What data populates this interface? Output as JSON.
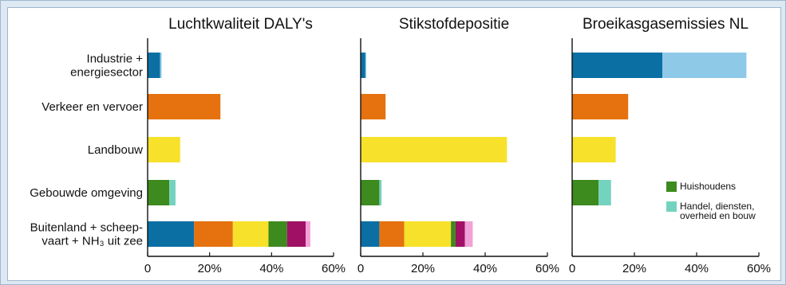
{
  "chart_data": {
    "type": "bar",
    "stacked": true,
    "orientation": "horizontal",
    "categories": [
      "Industrie + energiesector",
      "Verkeer en vervoer",
      "Landbouw",
      "Gebouwde omgeving",
      "Buitenland + scheepvaart + NH3 uit zee"
    ],
    "category_lines": [
      [
        "Industrie +",
        "energiesector"
      ],
      [
        "Verkeer en vervoer"
      ],
      [
        "Landbouw"
      ],
      [
        "Gebouwde omgeving"
      ],
      [
        "Buitenland + scheep-",
        "vaart + NH₃ uit zee"
      ]
    ],
    "xlim": [
      0,
      60
    ],
    "xticks": [
      "0",
      "20%",
      "40%",
      "60%"
    ],
    "x_tick_values": [
      0,
      20,
      40,
      60
    ],
    "grid": false,
    "legend_placement": "right of third panel, lower half",
    "legend": [
      {
        "label_lines": [
          "Huishoudens"
        ],
        "color": "#3d8a1e"
      },
      {
        "label_lines": [
          "Handel, diensten,",
          "overheid en bouw"
        ],
        "color": "#74d3be"
      }
    ],
    "panels": [
      {
        "title": "Luchtkwaliteit DALY's",
        "bars": [
          [
            {
              "value": 4,
              "color": "#0b6fa4"
            },
            {
              "value": 0.5,
              "color": "#8ec9e8"
            }
          ],
          [
            {
              "value": 23.5,
              "color": "#e5720f"
            }
          ],
          [
            {
              "value": 10.5,
              "color": "#f7e12b"
            }
          ],
          [
            {
              "value": 7,
              "color": "#3d8a1e"
            },
            {
              "value": 2,
              "color": "#74d3be"
            }
          ],
          [
            {
              "value": 15,
              "color": "#0b6fa4"
            },
            {
              "value": 12.5,
              "color": "#e5720f"
            },
            {
              "value": 11.5,
              "color": "#f7e12b"
            },
            {
              "value": 6,
              "color": "#3d8a1e"
            },
            {
              "value": 6,
              "color": "#a01165"
            },
            {
              "value": 1.5,
              "color": "#f2a1d8"
            }
          ]
        ]
      },
      {
        "title": "Stikstofdepositie",
        "bars": [
          [
            {
              "value": 1.5,
              "color": "#0b6fa4"
            },
            {
              "value": 0.3,
              "color": "#8ec9e8"
            }
          ],
          [
            {
              "value": 8,
              "color": "#e5720f"
            }
          ],
          [
            {
              "value": 47,
              "color": "#f7e12b"
            }
          ],
          [
            {
              "value": 6,
              "color": "#3d8a1e"
            },
            {
              "value": 0.7,
              "color": "#74d3be"
            }
          ],
          [
            {
              "value": 6,
              "color": "#0b6fa4"
            },
            {
              "value": 8,
              "color": "#e5720f"
            },
            {
              "value": 15,
              "color": "#f7e12b"
            },
            {
              "value": 1.5,
              "color": "#3d8a1e"
            },
            {
              "value": 3,
              "color": "#a01165"
            },
            {
              "value": 2.5,
              "color": "#f2a1d8"
            }
          ]
        ]
      },
      {
        "title": "Broeikasgasemissies NL",
        "bars": [
          [
            {
              "value": 29,
              "color": "#0b6fa4"
            },
            {
              "value": 27,
              "color": "#8ec9e8"
            }
          ],
          [
            {
              "value": 18,
              "color": "#e5720f"
            }
          ],
          [
            {
              "value": 14,
              "color": "#f7e12b"
            }
          ],
          [
            {
              "value": 8.5,
              "color": "#3d8a1e"
            },
            {
              "value": 4,
              "color": "#74d3be"
            }
          ],
          []
        ]
      }
    ]
  }
}
